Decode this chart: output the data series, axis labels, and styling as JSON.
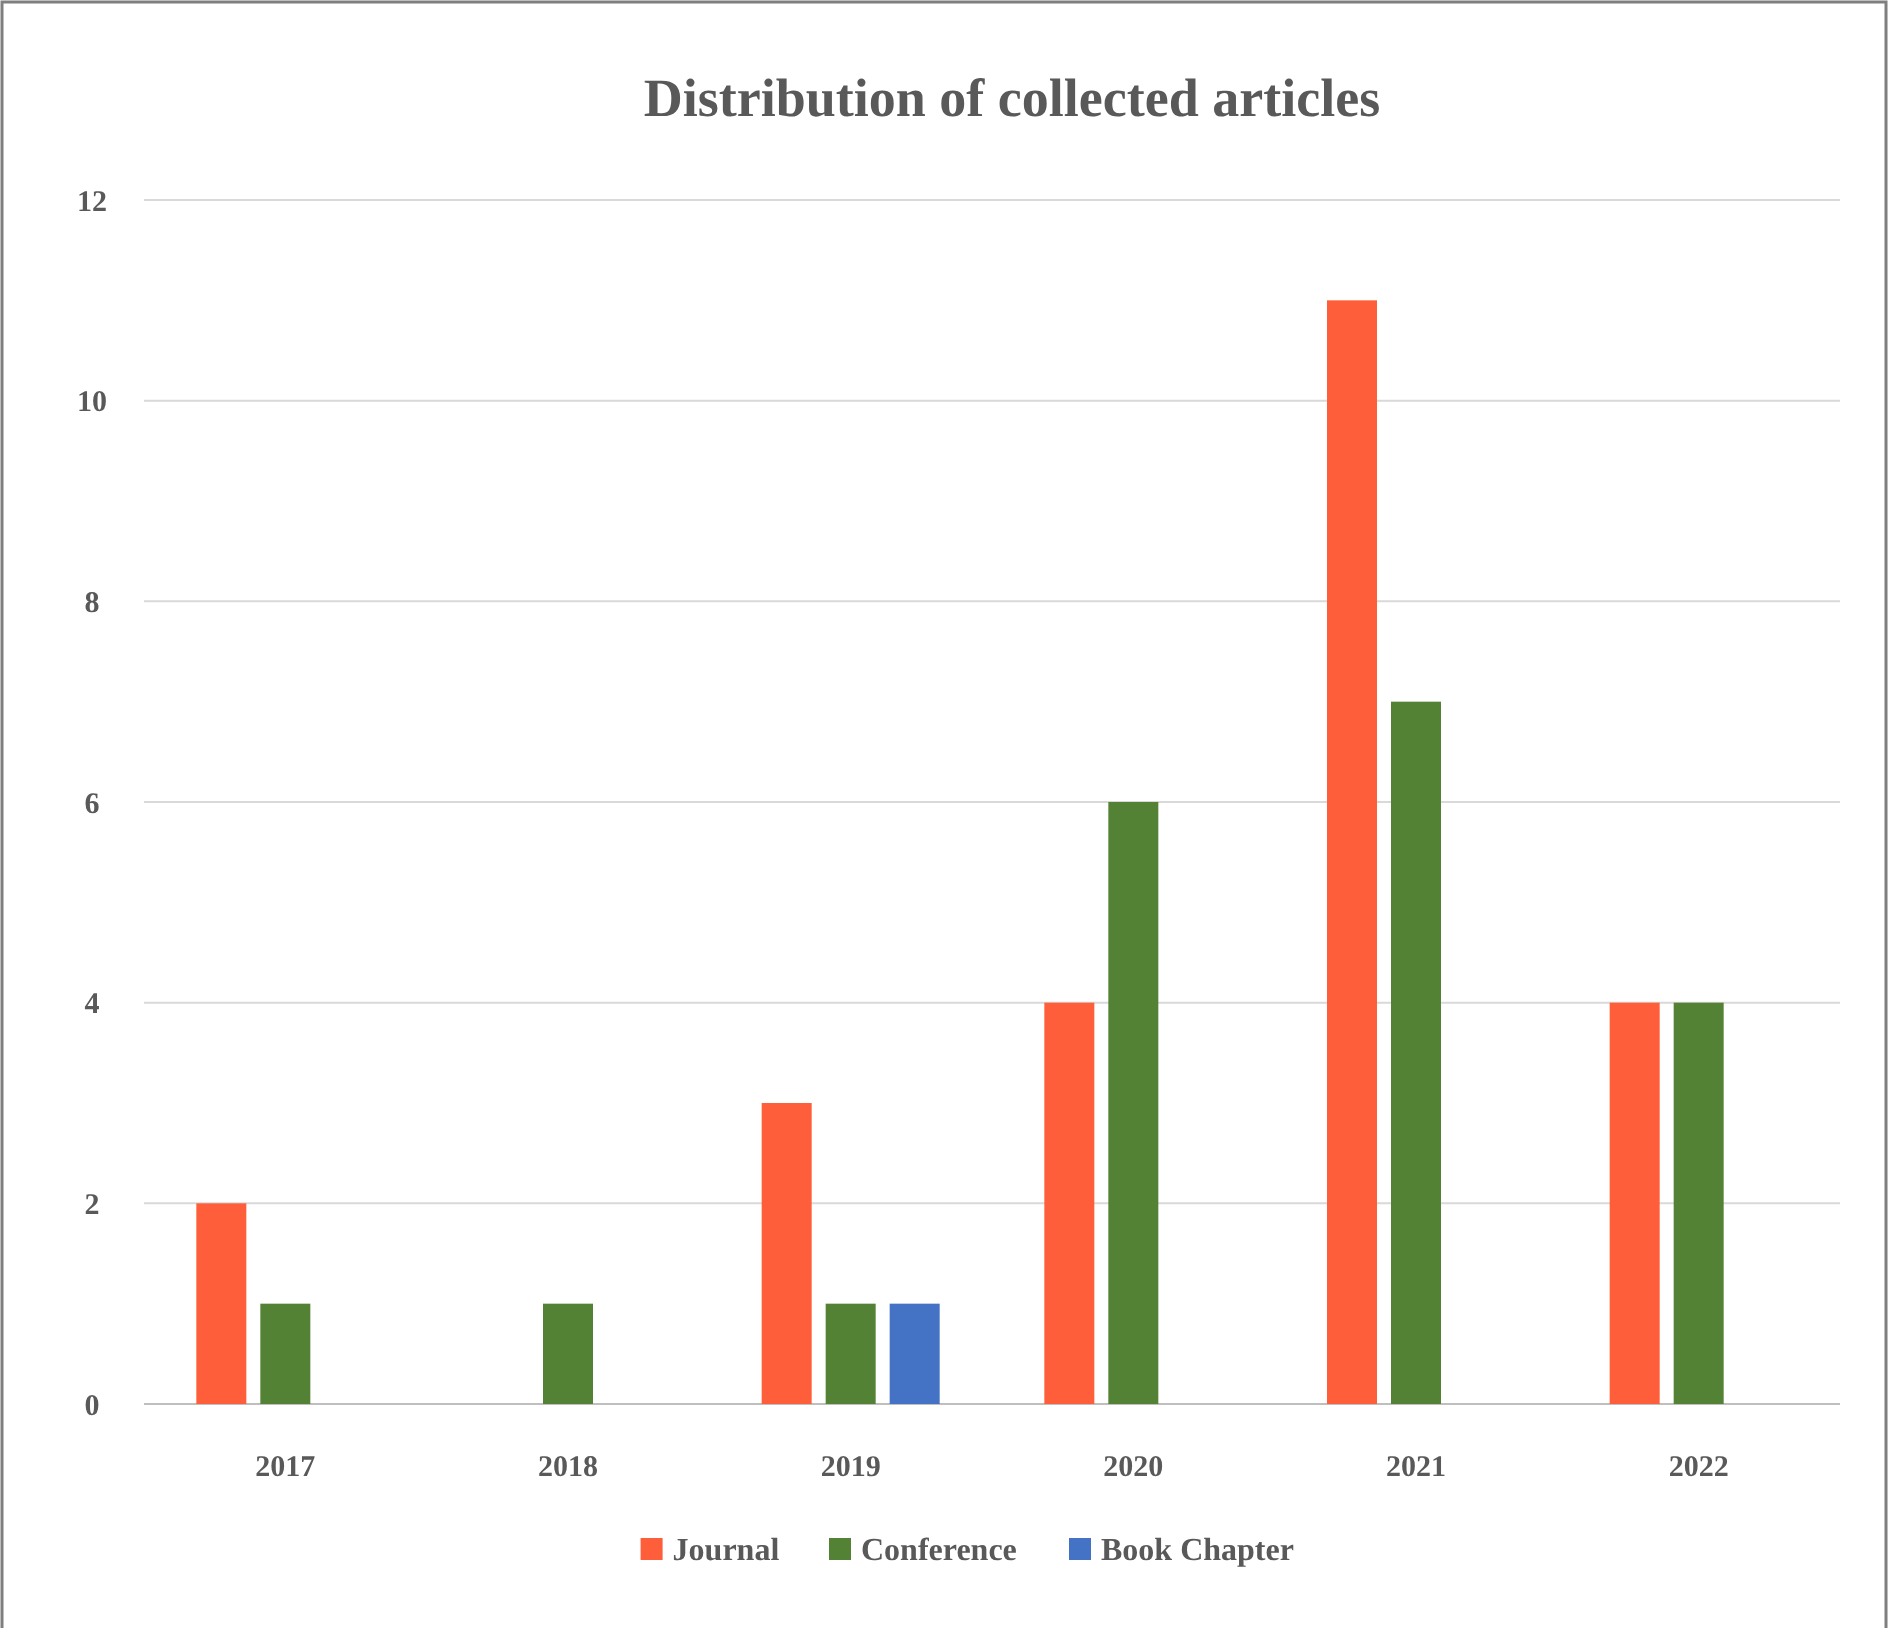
{
  "chart_data": {
    "type": "bar",
    "title": "Distribution of collected articles",
    "categories": [
      "2017",
      "2018",
      "2019",
      "2020",
      "2021",
      "2022"
    ],
    "series": [
      {
        "name": "Journal",
        "color": "#fe5f3a",
        "values": [
          2,
          0,
          3,
          4,
          11,
          4
        ]
      },
      {
        "name": "Conference",
        "color": "#548235",
        "values": [
          1,
          1,
          1,
          6,
          7,
          4
        ]
      },
      {
        "name": "Book Chapter",
        "color": "#4472c4",
        "values": [
          0,
          0,
          1,
          0,
          0,
          0
        ]
      }
    ],
    "ylim": [
      0,
      12
    ],
    "yticks": [
      0,
      2,
      4,
      6,
      8,
      10,
      12
    ],
    "grid": "y",
    "legend": "bottom"
  }
}
